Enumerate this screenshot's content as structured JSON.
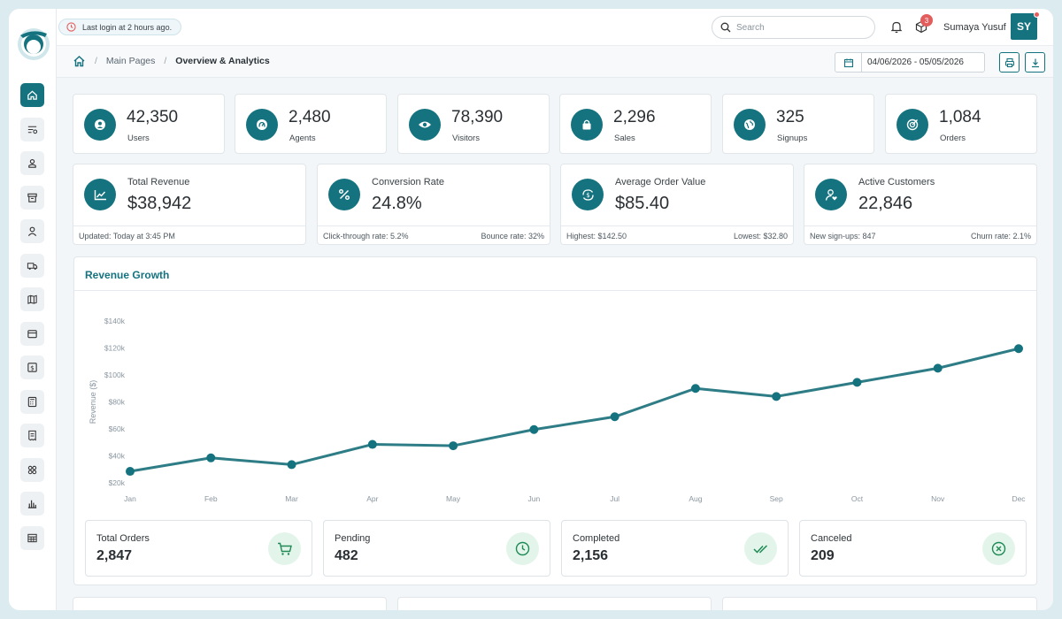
{
  "topbar": {
    "last_login": "Last login at 2 hours ago.",
    "search_placeholder": "Search",
    "notifications_badge": "3",
    "user_name": "Sumaya Yusuf",
    "user_initials": "SY"
  },
  "breadcrumb": {
    "parent": "Main Pages",
    "current": "Overview & Analytics"
  },
  "date_range": "04/06/2026 - 05/05/2026",
  "stats": [
    {
      "value": "42,350",
      "label": "Users",
      "icon": "user-icon"
    },
    {
      "value": "2,480",
      "label": "Agents",
      "icon": "gauge-icon"
    },
    {
      "value": "78,390",
      "label": "Visitors",
      "icon": "eye-icon"
    },
    {
      "value": "2,296",
      "label": "Sales",
      "icon": "bag-icon"
    },
    {
      "value": "325",
      "label": "Signups",
      "icon": "globe-icon"
    },
    {
      "value": "1,084",
      "label": "Orders",
      "icon": "target-icon"
    }
  ],
  "metrics": [
    {
      "title": "Total Revenue",
      "value": "$38,942",
      "foot_left": "Updated: Today at 3:45 PM",
      "foot_right": ""
    },
    {
      "title": "Conversion Rate",
      "value": "24.8%",
      "foot_left": "Click-through rate: 5.2%",
      "foot_right": "Bounce rate: 32%"
    },
    {
      "title": "Average Order Value",
      "value": "$85.40",
      "foot_left": "Highest: $142.50",
      "foot_right": "Lowest: $32.80"
    },
    {
      "title": "Active Customers",
      "value": "22,846",
      "foot_left": "New sign-ups: 847",
      "foot_right": "Churn rate: 2.1%"
    }
  ],
  "chart_title": "Revenue Growth",
  "chart_data": {
    "type": "line",
    "title": "Revenue Growth",
    "ylabel": "Revenue ($)",
    "xlabel": "",
    "categories": [
      "Jan",
      "Feb",
      "Mar",
      "Apr",
      "May",
      "Jun",
      "Jul",
      "Aug",
      "Sep",
      "Oct",
      "Nov",
      "Dec"
    ],
    "values": [
      28500,
      38500,
      33500,
      48500,
      47500,
      59500,
      69000,
      90000,
      84000,
      94500,
      105000,
      119500
    ],
    "yticks": [
      "$20k",
      "$40k",
      "$60k",
      "$80k",
      "$100k",
      "$120k",
      "$140k"
    ],
    "ylim": [
      20000,
      140000
    ],
    "color": "#2e7d86"
  },
  "orders": [
    {
      "title": "Total Orders",
      "value": "2,847",
      "icon": "cart-icon"
    },
    {
      "title": "Pending",
      "value": "482",
      "icon": "clock-icon"
    },
    {
      "title": "Completed",
      "value": "2,156",
      "icon": "double-check-icon"
    },
    {
      "title": "Canceled",
      "value": "209",
      "icon": "x-circle-icon"
    }
  ],
  "colors": {
    "accent": "#15737f",
    "success_bg": "#e3f5ea",
    "success": "#1f8a55",
    "danger": "#e35d5d"
  }
}
